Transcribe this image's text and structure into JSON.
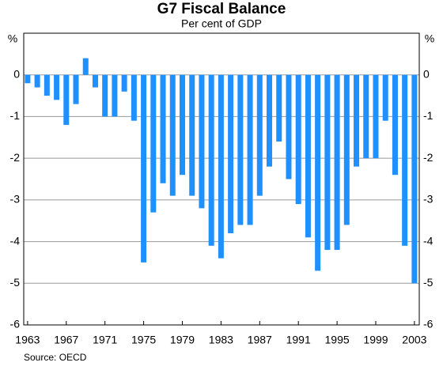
{
  "chart_data": {
    "type": "bar",
    "title": "G7 Fiscal Balance",
    "subtitle": "Per cent of GDP",
    "y_unit": "%",
    "source": "Source: OECD",
    "x": [
      1963,
      1964,
      1965,
      1966,
      1967,
      1968,
      1969,
      1970,
      1971,
      1972,
      1973,
      1974,
      1975,
      1976,
      1977,
      1978,
      1979,
      1980,
      1981,
      1982,
      1983,
      1984,
      1985,
      1986,
      1987,
      1988,
      1989,
      1990,
      1991,
      1992,
      1993,
      1994,
      1995,
      1996,
      1997,
      1998,
      1999,
      2000,
      2001,
      2002,
      2003
    ],
    "values": [
      -0.2,
      -0.3,
      -0.5,
      -0.6,
      -1.2,
      -0.7,
      0.4,
      -0.3,
      -1.0,
      -1.0,
      -0.4,
      -1.1,
      -4.5,
      -3.3,
      -2.6,
      -2.9,
      -2.4,
      -2.9,
      -3.2,
      -4.1,
      -4.4,
      -3.8,
      -3.6,
      -3.6,
      -2.9,
      -2.2,
      -1.6,
      -2.5,
      -3.1,
      -3.9,
      -4.7,
      -4.2,
      -4.2,
      -3.6,
      -2.2,
      -2.0,
      -2.0,
      -1.1,
      -2.4,
      -4.1,
      -5.0
    ],
    "color": "#1e90ff",
    "xlim": [
      1962.6,
      2003.5
    ],
    "xticks": [
      1963,
      1967,
      1971,
      1975,
      1979,
      1983,
      1987,
      1991,
      1995,
      1999,
      2003
    ],
    "ylim": [
      -6,
      1
    ],
    "yticks": [
      0,
      -1,
      -2,
      -3,
      -4,
      -5,
      -6
    ],
    "grid": true
  }
}
